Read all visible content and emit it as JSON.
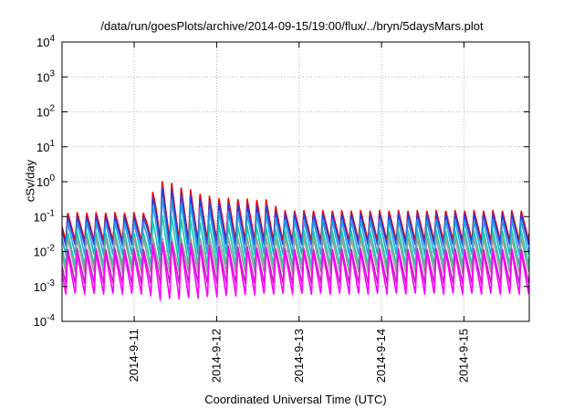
{
  "chart_data": {
    "type": "line",
    "title": "/data/run/goesPlots/archive/2014-09-15/19:00/flux/../bryn/5daysMars.plot",
    "xlabel": "Coordinated Universal Time (UTC)",
    "ylabel": "cSv/day",
    "yscale": "log",
    "ylim": [
      0.0001,
      10000
    ],
    "yticks": [
      {
        "value": 0.0001,
        "label": "10",
        "exp": "-4"
      },
      {
        "value": 0.001,
        "label": "10",
        "exp": "-3"
      },
      {
        "value": 0.01,
        "label": "10",
        "exp": "-2"
      },
      {
        "value": 0.1,
        "label": "10",
        "exp": "-1"
      },
      {
        "value": 1,
        "label": "10",
        "exp": "0"
      },
      {
        "value": 10,
        "label": "10",
        "exp": "1"
      },
      {
        "value": 100,
        "label": "10",
        "exp": "2"
      },
      {
        "value": 1000,
        "label": "10",
        "exp": "3"
      },
      {
        "value": 10000,
        "label": "10",
        "exp": "4"
      }
    ],
    "xlim": [
      "2014-09-10T03:00",
      "2014-09-15T19:00"
    ],
    "xticks": [
      {
        "value": "2014-09-11T00:00",
        "label": "2014-9-11"
      },
      {
        "value": "2014-09-12T00:00",
        "label": "2014-9-12"
      },
      {
        "value": "2014-09-13T00:00",
        "label": "2014-9-13"
      },
      {
        "value": "2014-09-14T00:00",
        "label": "2014-9-14"
      },
      {
        "value": "2014-09-15T00:00",
        "label": "2014-9-15"
      }
    ],
    "grid": true,
    "legend": "none",
    "oscillation_period_hours": 2.75,
    "series": [
      {
        "color": "#ee0000",
        "min": [
          [
            0,
            0.02
          ],
          [
            128,
            0.02
          ]
        ],
        "max": [
          [
            0,
            0.13
          ],
          [
            24,
            0.13
          ],
          [
            28,
            1.2
          ],
          [
            44,
            0.35
          ],
          [
            60,
            0.3
          ],
          [
            64,
            0.15
          ],
          [
            128,
            0.15
          ]
        ]
      },
      {
        "color": "#2a3ddd",
        "min": [
          [
            0,
            0.015
          ],
          [
            128,
            0.015
          ]
        ],
        "max": [
          [
            0,
            0.1
          ],
          [
            24,
            0.1
          ],
          [
            28,
            0.8
          ],
          [
            44,
            0.25
          ],
          [
            60,
            0.2
          ],
          [
            64,
            0.12
          ],
          [
            128,
            0.12
          ]
        ]
      },
      {
        "color": "#1ea0e6",
        "min": [
          [
            0,
            0.008
          ],
          [
            128,
            0.008
          ]
        ],
        "max": [
          [
            0,
            0.07
          ],
          [
            24,
            0.07
          ],
          [
            28,
            0.4
          ],
          [
            44,
            0.15
          ],
          [
            60,
            0.12
          ],
          [
            64,
            0.08
          ],
          [
            128,
            0.08
          ]
        ]
      },
      {
        "color": "#18c8a8",
        "min": [
          [
            0,
            0.004
          ],
          [
            128,
            0.004
          ]
        ],
        "max": [
          [
            0,
            0.035
          ],
          [
            24,
            0.035
          ],
          [
            28,
            0.12
          ],
          [
            44,
            0.06
          ],
          [
            60,
            0.05
          ],
          [
            64,
            0.04
          ],
          [
            128,
            0.04
          ]
        ]
      },
      {
        "color": "#9a9a9a",
        "min": [
          [
            0,
            0.0025
          ],
          [
            128,
            0.0025
          ]
        ],
        "max": [
          [
            0,
            0.025
          ],
          [
            128,
            0.025
          ]
        ]
      },
      {
        "color": "#c020c0",
        "min": [
          [
            0,
            0.0012
          ],
          [
            128,
            0.0012
          ]
        ],
        "max": [
          [
            0,
            0.012
          ],
          [
            24,
            0.012
          ],
          [
            28,
            0.02
          ],
          [
            44,
            0.015
          ],
          [
            60,
            0.013
          ],
          [
            64,
            0.012
          ],
          [
            128,
            0.012
          ]
        ]
      },
      {
        "color": "#ff00ff",
        "min": [
          [
            0,
            0.0006
          ],
          [
            24,
            0.0006
          ],
          [
            28,
            0.0004
          ],
          [
            60,
            0.0006
          ],
          [
            128,
            0.0006
          ]
        ],
        "max": [
          [
            0,
            0.009
          ],
          [
            24,
            0.009
          ],
          [
            28,
            0.02
          ],
          [
            44,
            0.013
          ],
          [
            60,
            0.012
          ],
          [
            64,
            0.01
          ],
          [
            128,
            0.01
          ]
        ]
      }
    ]
  }
}
